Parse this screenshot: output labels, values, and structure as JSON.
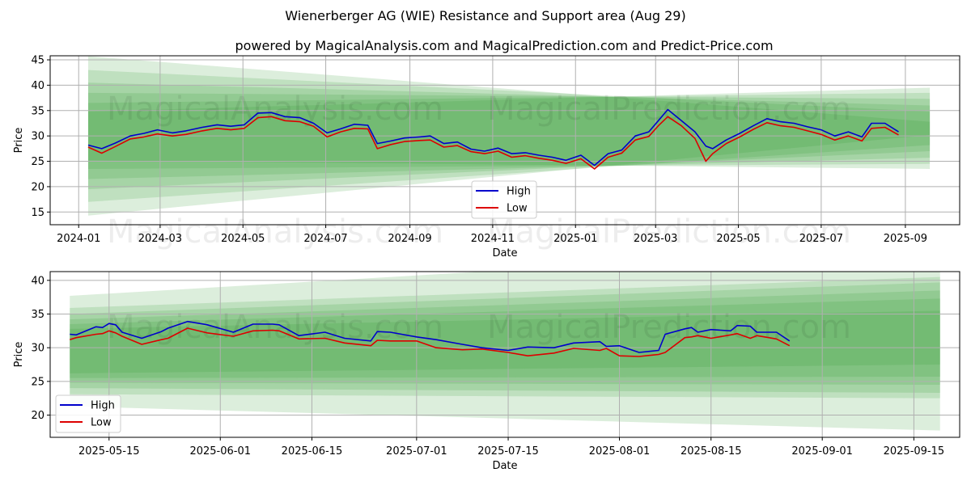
{
  "title": "Wienerberger AG (WIE) Resistance and Support area (Aug 29)",
  "subtitle": "powered by MagicalAnalysis.com and MagicalPrediction.com and Predict-Price.com",
  "watermarks": [
    "MagicalAnalysis.com",
    "MagicalPrediction.com"
  ],
  "colors": {
    "high": "#0000cc",
    "low": "#dd0000",
    "band": "#2e9a2e"
  },
  "chart_data": [
    {
      "type": "line",
      "xlabel": "Date",
      "ylabel": "Price",
      "x_ticks": [
        "2024-01",
        "2024-03",
        "2024-05",
        "2024-07",
        "2024-09",
        "2024-11",
        "2025-01",
        "2025-03",
        "2025-05",
        "2025-07",
        "2025-09"
      ],
      "y_ticks": [
        15,
        20,
        25,
        30,
        35,
        40,
        45
      ],
      "xlim": [
        "2023-12-11",
        "2025-10-11"
      ],
      "ylim": [
        12.5,
        45.8
      ],
      "grid": true,
      "legend_position": "bottom-center",
      "legend": [
        "High",
        "Low"
      ],
      "bands": {
        "x_range": [
          "2024-01-08",
          "2025-09-19"
        ],
        "start_mid": 30.0,
        "end_mid": 31.5,
        "start_half_widths": [
          15.7,
          13.0,
          10.5,
          8.5,
          6.5,
          4.8
        ],
        "end_half_widths": [
          1.3,
          3.3,
          4.5,
          5.8,
          7.0,
          8.0
        ]
      },
      "series": [
        {
          "name": "High",
          "x": [
            "2024-01-08",
            "2024-01-18",
            "2024-01-28",
            "2024-02-08",
            "2024-02-18",
            "2024-02-28",
            "2024-03-10",
            "2024-03-20",
            "2024-04-01",
            "2024-04-12",
            "2024-04-22",
            "2024-05-02",
            "2024-05-12",
            "2024-05-22",
            "2024-06-01",
            "2024-06-12",
            "2024-06-22",
            "2024-07-02",
            "2024-07-12",
            "2024-07-22",
            "2024-08-01",
            "2024-08-08",
            "2024-08-18",
            "2024-08-28",
            "2024-09-08",
            "2024-09-16",
            "2024-09-26",
            "2024-10-06",
            "2024-10-16",
            "2024-10-26",
            "2024-11-05",
            "2024-11-15",
            "2024-11-25",
            "2024-12-05",
            "2024-12-15",
            "2024-12-25",
            "2025-01-05",
            "2025-01-15",
            "2025-01-25",
            "2025-02-04",
            "2025-02-14",
            "2025-02-24",
            "2025-03-03",
            "2025-03-10",
            "2025-03-20",
            "2025-03-30",
            "2025-04-07",
            "2025-04-12",
            "2025-04-22",
            "2025-05-02",
            "2025-05-12",
            "2025-05-22",
            "2025-06-01",
            "2025-06-11",
            "2025-06-21",
            "2025-07-01",
            "2025-07-11",
            "2025-07-21",
            "2025-07-31",
            "2025-08-07",
            "2025-08-17",
            "2025-08-27"
          ],
          "values": [
            28.2,
            27.5,
            28.6,
            30.0,
            30.5,
            31.2,
            30.6,
            31.0,
            31.7,
            32.2,
            31.9,
            32.2,
            34.5,
            34.6,
            33.8,
            33.6,
            32.5,
            30.6,
            31.4,
            32.3,
            32.1,
            28.5,
            29.0,
            29.6,
            29.8,
            30.0,
            28.5,
            28.8,
            27.4,
            27.0,
            27.6,
            26.5,
            26.7,
            26.2,
            25.8,
            25.2,
            26.2,
            24.2,
            26.5,
            27.2,
            30.0,
            30.8,
            33.0,
            35.2,
            33.0,
            30.8,
            28.0,
            27.5,
            29.2,
            30.5,
            32.0,
            33.4,
            32.8,
            32.5,
            31.8,
            31.2,
            30.0,
            30.8,
            29.8,
            32.5,
            32.5,
            30.8
          ]
        },
        {
          "name": "Low",
          "x": [
            "2024-01-08",
            "2024-01-18",
            "2024-01-28",
            "2024-02-08",
            "2024-02-18",
            "2024-02-28",
            "2024-03-10",
            "2024-03-20",
            "2024-04-01",
            "2024-04-12",
            "2024-04-22",
            "2024-05-02",
            "2024-05-12",
            "2024-05-22",
            "2024-06-01",
            "2024-06-12",
            "2024-06-22",
            "2024-07-02",
            "2024-07-12",
            "2024-07-22",
            "2024-08-01",
            "2024-08-08",
            "2024-08-18",
            "2024-08-28",
            "2024-09-08",
            "2024-09-16",
            "2024-09-26",
            "2024-10-06",
            "2024-10-16",
            "2024-10-26",
            "2024-11-05",
            "2024-11-15",
            "2024-11-25",
            "2024-12-05",
            "2024-12-15",
            "2024-12-25",
            "2025-01-05",
            "2025-01-15",
            "2025-01-25",
            "2025-02-04",
            "2025-02-14",
            "2025-02-24",
            "2025-03-03",
            "2025-03-10",
            "2025-03-20",
            "2025-03-30",
            "2025-04-07",
            "2025-04-12",
            "2025-04-22",
            "2025-05-02",
            "2025-05-12",
            "2025-05-22",
            "2025-06-01",
            "2025-06-11",
            "2025-06-21",
            "2025-07-01",
            "2025-07-11",
            "2025-07-21",
            "2025-07-31",
            "2025-08-07",
            "2025-08-17",
            "2025-08-27"
          ],
          "values": [
            27.8,
            26.6,
            27.9,
            29.4,
            29.8,
            30.4,
            30.0,
            30.3,
            31.0,
            31.5,
            31.2,
            31.5,
            33.6,
            33.8,
            33.0,
            32.8,
            31.9,
            29.8,
            30.8,
            31.5,
            31.4,
            27.5,
            28.3,
            28.9,
            29.1,
            29.2,
            27.8,
            28.1,
            26.9,
            26.5,
            27.0,
            25.8,
            26.1,
            25.6,
            25.2,
            24.6,
            25.5,
            23.5,
            25.8,
            26.6,
            29.2,
            29.9,
            32.0,
            33.8,
            32.0,
            29.5,
            25.0,
            26.5,
            28.5,
            29.8,
            31.3,
            32.6,
            32.0,
            31.7,
            31.0,
            30.3,
            29.2,
            30.0,
            29.0,
            31.5,
            31.7,
            30.2
          ]
        }
      ]
    },
    {
      "type": "line",
      "xlabel": "Date",
      "ylabel": "Price",
      "x_ticks": [
        "2025-05-15",
        "2025-06-01",
        "2025-06-15",
        "2025-07-01",
        "2025-07-15",
        "2025-08-01",
        "2025-08-15",
        "2025-09-01",
        "2025-09-15"
      ],
      "y_ticks": [
        20,
        25,
        30,
        35,
        40
      ],
      "xlim": [
        "2025-05-06",
        "2025-09-22"
      ],
      "ylim": [
        16.7,
        41.3
      ],
      "grid": true,
      "legend_position": "bottom-left",
      "legend": [
        "High",
        "Low"
      ],
      "bands": {
        "x_range": [
          "2025-05-09",
          "2025-09-19"
        ],
        "start_mid": 29.5,
        "end_mid": 31.5,
        "start_half_widths": [
          8.2,
          6.4,
          5.5,
          4.7,
          4.0,
          3.3
        ],
        "end_half_widths": [
          13.8,
          9.0,
          8.2,
          7.0,
          5.8,
          4.0
        ]
      },
      "series": [
        {
          "name": "High",
          "x": [
            "2025-05-09",
            "2025-05-10",
            "2025-05-13",
            "2025-05-14",
            "2025-05-15",
            "2025-05-16",
            "2025-05-17",
            "2025-05-20",
            "2025-05-23",
            "2025-05-24",
            "2025-05-27",
            "2025-05-30",
            "2025-06-03",
            "2025-06-06",
            "2025-06-09",
            "2025-06-10",
            "2025-06-13",
            "2025-06-17",
            "2025-06-20",
            "2025-06-24",
            "2025-06-25",
            "2025-06-27",
            "2025-07-01",
            "2025-07-04",
            "2025-07-08",
            "2025-07-11",
            "2025-07-15",
            "2025-07-18",
            "2025-07-22",
            "2025-07-25",
            "2025-07-29",
            "2025-07-30",
            "2025-08-01",
            "2025-08-04",
            "2025-08-06",
            "2025-08-07",
            "2025-08-08",
            "2025-08-11",
            "2025-08-12",
            "2025-08-13",
            "2025-08-15",
            "2025-08-18",
            "2025-08-19",
            "2025-08-21",
            "2025-08-22",
            "2025-08-25",
            "2025-08-27"
          ],
          "values": [
            32.0,
            31.9,
            33.1,
            33.0,
            33.6,
            33.4,
            32.3,
            31.4,
            32.4,
            32.9,
            33.9,
            33.4,
            32.3,
            33.5,
            33.5,
            33.4,
            31.8,
            32.3,
            31.4,
            31.0,
            32.4,
            32.3,
            31.6,
            31.2,
            30.5,
            30.0,
            29.6,
            30.1,
            30.0,
            30.7,
            30.9,
            30.2,
            30.3,
            29.3,
            29.5,
            29.6,
            32.0,
            32.8,
            33.0,
            32.3,
            32.7,
            32.5,
            33.3,
            33.2,
            32.3,
            32.3,
            31.0
          ]
        },
        {
          "name": "Low",
          "x": [
            "2025-05-09",
            "2025-05-10",
            "2025-05-13",
            "2025-05-14",
            "2025-05-15",
            "2025-05-16",
            "2025-05-17",
            "2025-05-20",
            "2025-05-23",
            "2025-05-24",
            "2025-05-27",
            "2025-05-30",
            "2025-06-03",
            "2025-06-06",
            "2025-06-09",
            "2025-06-10",
            "2025-06-13",
            "2025-06-17",
            "2025-06-20",
            "2025-06-24",
            "2025-06-25",
            "2025-06-27",
            "2025-07-01",
            "2025-07-04",
            "2025-07-08",
            "2025-07-11",
            "2025-07-15",
            "2025-07-18",
            "2025-07-22",
            "2025-07-25",
            "2025-07-29",
            "2025-07-30",
            "2025-08-01",
            "2025-08-04",
            "2025-08-06",
            "2025-08-07",
            "2025-08-08",
            "2025-08-11",
            "2025-08-12",
            "2025-08-13",
            "2025-08-15",
            "2025-08-18",
            "2025-08-19",
            "2025-08-21",
            "2025-08-22",
            "2025-08-25",
            "2025-08-27"
          ],
          "values": [
            31.2,
            31.5,
            32.0,
            32.1,
            32.5,
            32.2,
            31.7,
            30.5,
            31.2,
            31.4,
            32.9,
            32.2,
            31.7,
            32.5,
            32.6,
            32.5,
            31.3,
            31.4,
            30.7,
            30.3,
            31.1,
            31.0,
            31.0,
            30.0,
            29.7,
            29.8,
            29.3,
            28.8,
            29.2,
            29.9,
            29.6,
            29.9,
            28.8,
            28.7,
            28.9,
            29.0,
            29.3,
            31.5,
            31.6,
            31.8,
            31.4,
            31.9,
            32.1,
            31.4,
            31.8,
            31.3,
            30.3
          ]
        }
      ]
    }
  ]
}
